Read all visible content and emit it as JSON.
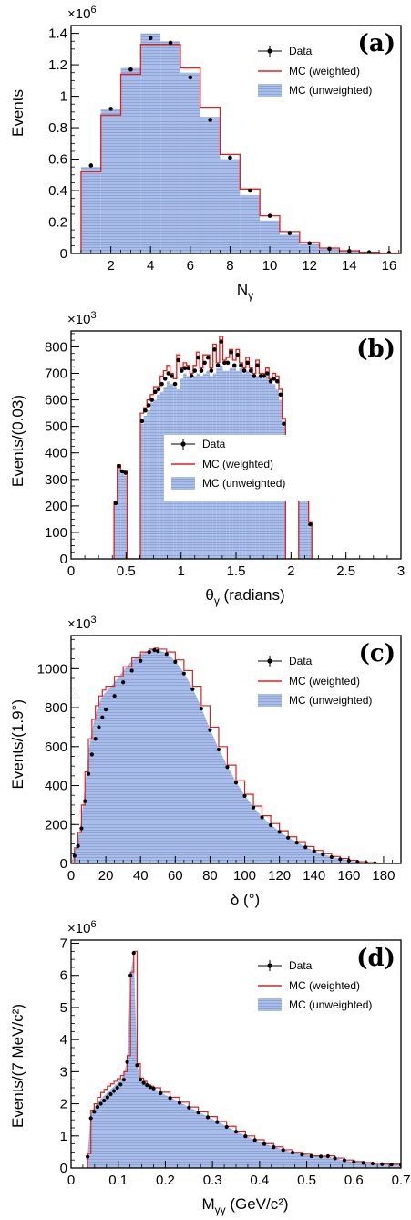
{
  "figure": {
    "fill_color": "#a9bde6",
    "hatch_color": "#7f99d6",
    "mc_line_color": "#e0201b",
    "data_color": "#000000"
  },
  "chart_data": [
    {
      "type": "bar",
      "panel_label": "(a)",
      "xlabel": "N",
      "xlabel_sub": "γ",
      "xlabel_rest": "",
      "ylabel": "Events",
      "multiplier": "×10",
      "multiplier_exp": "6",
      "xlim": [
        0,
        16.6
      ],
      "ylim": [
        0,
        1.45
      ],
      "xticks": [
        "2",
        "4",
        "6",
        "8",
        "10",
        "12",
        "14",
        "16"
      ],
      "xtick_values": [
        2,
        4,
        6,
        8,
        10,
        12,
        14,
        16
      ],
      "yticks": [
        "0",
        "0.2",
        "0.4",
        "0.6",
        "0.8",
        "1",
        "1.2",
        "1.4"
      ],
      "ytick_values": [
        0,
        0.2,
        0.4,
        0.6,
        0.8,
        1.0,
        1.2,
        1.4
      ],
      "legend": {
        "data": "Data",
        "weighted": "MC (weighted)",
        "unweighted": "MC (unweighted)"
      },
      "bin_edges": [
        0.5,
        1.5,
        2.5,
        3.5,
        4.5,
        5.5,
        6.5,
        7.5,
        8.5,
        9.5,
        10.5,
        11.5,
        12.5,
        13.5,
        14.5,
        15.5,
        16.5
      ],
      "series": [
        {
          "name": "MC (unweighted)",
          "values": [
            0.55,
            0.92,
            1.18,
            1.4,
            1.35,
            1.15,
            0.87,
            0.6,
            0.37,
            0.21,
            0.12,
            0.06,
            0.03,
            0.015,
            0.006,
            0.002
          ]
        },
        {
          "name": "MC (weighted)",
          "values": [
            0.52,
            0.88,
            1.14,
            1.33,
            1.33,
            1.18,
            0.93,
            0.63,
            0.41,
            0.24,
            0.14,
            0.07,
            0.035,
            0.017,
            0.008,
            0.003
          ]
        },
        {
          "name": "Data",
          "values": [
            0.56,
            0.92,
            1.17,
            1.37,
            1.34,
            1.12,
            0.85,
            0.61,
            0.4,
            0.24,
            0.13,
            0.065,
            0.03,
            0.015,
            0.007,
            0.003
          ]
        }
      ]
    },
    {
      "type": "bar",
      "panel_label": "(b)",
      "xlabel": "θ",
      "xlabel_sub": "γ",
      "xlabel_rest": " (radians)",
      "ylabel": "Events/(0.03)",
      "multiplier": "×10",
      "multiplier_exp": "3",
      "xlim": [
        0,
        3
      ],
      "ylim": [
        0,
        860
      ],
      "xticks": [
        "0",
        "0.5",
        "1",
        "1.5",
        "2",
        "2.5",
        "3"
      ],
      "xtick_values": [
        0,
        0.5,
        1,
        1.5,
        2,
        2.5,
        3
      ],
      "yticks": [
        "0",
        "100",
        "200",
        "300",
        "400",
        "500",
        "600",
        "700",
        "800"
      ],
      "ytick_values": [
        0,
        100,
        200,
        300,
        400,
        500,
        600,
        700,
        800
      ],
      "legend": {
        "data": "Data",
        "weighted": "MC (weighted)",
        "unweighted": "MC (unweighted)"
      },
      "bin_start": 0.39,
      "bin_width": 0.03,
      "series": [
        {
          "name": "MC (unweighted)",
          "values": [
            200,
            340,
            320,
            315,
            0,
            0,
            0,
            0,
            510,
            540,
            560,
            590,
            600,
            620,
            630,
            650,
            670,
            660,
            650,
            640,
            680,
            700,
            690,
            680,
            690,
            700,
            690,
            700,
            710,
            690,
            700,
            720,
            730,
            710,
            710,
            720,
            730,
            710,
            720,
            700,
            710,
            700,
            690,
            690,
            690,
            680,
            690,
            670,
            660,
            640,
            600,
            500,
            0,
            0,
            0,
            0,
            360,
            350,
            360,
            120
          ]
        },
        {
          "name": "MC (weighted)",
          "values": [
            215,
            355,
            335,
            330,
            0,
            0,
            0,
            0,
            550,
            570,
            600,
            620,
            650,
            650,
            690,
            710,
            730,
            700,
            680,
            770,
            720,
            740,
            730,
            700,
            730,
            780,
            720,
            770,
            770,
            720,
            810,
            740,
            840,
            750,
            760,
            790,
            750,
            790,
            740,
            720,
            760,
            720,
            700,
            750,
            700,
            700,
            720,
            680,
            700,
            690,
            640,
            530,
            0,
            0,
            0,
            0,
            400,
            375,
            395,
            140
          ]
        },
        {
          "name": "Data",
          "values": [
            210,
            350,
            330,
            325,
            0,
            0,
            0,
            0,
            520,
            560,
            580,
            600,
            630,
            640,
            660,
            680,
            700,
            690,
            660,
            750,
            710,
            720,
            720,
            690,
            710,
            760,
            710,
            740,
            760,
            710,
            790,
            730,
            820,
            740,
            740,
            780,
            730,
            770,
            730,
            710,
            740,
            710,
            690,
            730,
            690,
            690,
            700,
            670,
            680,
            670,
            620,
            510,
            0,
            0,
            0,
            0,
            385,
            360,
            380,
            130
          ]
        }
      ]
    },
    {
      "type": "line",
      "panel_label": "(c)",
      "xlabel": "δ",
      "xlabel_sub": "",
      "xlabel_rest": " (°)",
      "ylabel": "Events/(1.9°)",
      "multiplier": "×10",
      "multiplier_exp": "3",
      "xlim": [
        0,
        190
      ],
      "ylim": [
        0,
        1170
      ],
      "xticks": [
        "0",
        "20",
        "40",
        "60",
        "80",
        "100",
        "120",
        "140",
        "160",
        "180"
      ],
      "xtick_values": [
        0,
        20,
        40,
        60,
        80,
        100,
        120,
        140,
        160,
        180
      ],
      "yticks": [
        "0",
        "200",
        "400",
        "600",
        "800",
        "1000"
      ],
      "ytick_values": [
        0,
        200,
        400,
        600,
        800,
        1000
      ],
      "legend": {
        "data": "Data",
        "weighted": "MC (weighted)",
        "unweighted": "MC (unweighted)"
      },
      "x": [
        0,
        2,
        4,
        6,
        8,
        10,
        12,
        14,
        16,
        18,
        20,
        25,
        30,
        35,
        40,
        45,
        48,
        50,
        55,
        60,
        65,
        70,
        75,
        80,
        85,
        90,
        95,
        100,
        105,
        110,
        115,
        120,
        125,
        130,
        135,
        140,
        145,
        150,
        155,
        160,
        165,
        170,
        175,
        178
      ],
      "series": [
        {
          "name": "MC (unweighted)",
          "values": [
            0,
            60,
            120,
            230,
            400,
            570,
            680,
            760,
            820,
            860,
            880,
            930,
            990,
            1040,
            1075,
            1095,
            1100,
            1095,
            1080,
            1040,
            980,
            900,
            800,
            690,
            590,
            500,
            420,
            350,
            290,
            240,
            200,
            165,
            135,
            110,
            85,
            65,
            48,
            35,
            24,
            15,
            8,
            4,
            1,
            0
          ]
        },
        {
          "name": "MC (weighted)",
          "values": [
            0,
            80,
            160,
            300,
            470,
            640,
            740,
            810,
            860,
            890,
            910,
            960,
            1010,
            1055,
            1085,
            1100,
            1105,
            1100,
            1085,
            1045,
            990,
            910,
            810,
            700,
            600,
            505,
            425,
            355,
            295,
            245,
            205,
            168,
            137,
            112,
            87,
            67,
            50,
            36,
            25,
            16,
            9,
            4,
            1,
            0
          ]
        },
        {
          "name": "Data",
          "values": [
            0,
            40,
            90,
            180,
            320,
            460,
            560,
            640,
            700,
            750,
            790,
            860,
            930,
            990,
            1040,
            1085,
            1095,
            1090,
            1075,
            1035,
            975,
            895,
            795,
            685,
            585,
            495,
            415,
            347,
            287,
            237,
            197,
            162,
            132,
            107,
            83,
            63,
            46,
            33,
            22,
            14,
            7,
            3,
            1,
            0
          ]
        }
      ]
    },
    {
      "type": "line",
      "panel_label": "(d)",
      "xlabel": "M",
      "xlabel_sub": "γγ",
      "xlabel_rest": " (GeV/c²)",
      "ylabel": "Events/(7 MeV/c²)",
      "multiplier": "×10",
      "multiplier_exp": "6",
      "xlim": [
        0,
        0.7
      ],
      "ylim": [
        0,
        7.1
      ],
      "xticks": [
        "0",
        "0.1",
        "0.2",
        "0.3",
        "0.4",
        "0.5",
        "0.6",
        "0.7"
      ],
      "xtick_values": [
        0,
        0.1,
        0.2,
        0.3,
        0.4,
        0.5,
        0.6,
        0.7
      ],
      "yticks": [
        "0",
        "1",
        "2",
        "3",
        "4",
        "5",
        "6",
        "7"
      ],
      "ytick_values": [
        0,
        1,
        2,
        3,
        4,
        5,
        6,
        7
      ],
      "legend": {
        "data": "Data",
        "weighted": "MC (weighted)",
        "unweighted": "MC (unweighted)"
      },
      "x": [
        0.035,
        0.042,
        0.049,
        0.056,
        0.063,
        0.07,
        0.077,
        0.084,
        0.091,
        0.098,
        0.105,
        0.112,
        0.119,
        0.126,
        0.133,
        0.14,
        0.147,
        0.154,
        0.161,
        0.168,
        0.175,
        0.19,
        0.21,
        0.23,
        0.25,
        0.27,
        0.29,
        0.31,
        0.33,
        0.35,
        0.37,
        0.39,
        0.41,
        0.43,
        0.45,
        0.47,
        0.49,
        0.51,
        0.53,
        0.545,
        0.56,
        0.58,
        0.6,
        0.62,
        0.64,
        0.66,
        0.68,
        0.7
      ],
      "series": [
        {
          "name": "MC (unweighted)",
          "values": [
            0.4,
            1.7,
            1.9,
            2.05,
            2.15,
            2.25,
            2.35,
            2.45,
            2.55,
            2.65,
            2.75,
            2.9,
            3.4,
            6.0,
            6.7,
            3.2,
            2.8,
            2.7,
            2.6,
            2.55,
            2.5,
            2.35,
            2.2,
            2.05,
            1.9,
            1.75,
            1.6,
            1.45,
            1.3,
            1.15,
            1.0,
            0.88,
            0.76,
            0.66,
            0.57,
            0.49,
            0.43,
            0.38,
            0.36,
            0.37,
            0.3,
            0.24,
            0.2,
            0.17,
            0.15,
            0.13,
            0.12,
            0.11
          ]
        },
        {
          "name": "MC (weighted)",
          "values": [
            0.45,
            1.8,
            2.0,
            2.2,
            2.35,
            2.45,
            2.55,
            2.62,
            2.7,
            2.78,
            2.88,
            3.0,
            3.5,
            6.1,
            6.75,
            3.25,
            2.8,
            2.7,
            2.6,
            2.55,
            2.5,
            2.36,
            2.2,
            2.05,
            1.9,
            1.75,
            1.6,
            1.45,
            1.3,
            1.15,
            1.0,
            0.88,
            0.76,
            0.66,
            0.57,
            0.49,
            0.43,
            0.38,
            0.37,
            0.38,
            0.31,
            0.25,
            0.2,
            0.17,
            0.15,
            0.13,
            0.12,
            0.11
          ]
        },
        {
          "name": "Data",
          "values": [
            0.35,
            1.55,
            1.75,
            1.9,
            2.0,
            2.1,
            2.2,
            2.3,
            2.4,
            2.5,
            2.6,
            2.75,
            3.3,
            6.0,
            6.7,
            3.2,
            2.75,
            2.65,
            2.58,
            2.52,
            2.48,
            2.33,
            2.18,
            2.03,
            1.88,
            1.73,
            1.58,
            1.43,
            1.28,
            1.13,
            0.99,
            0.87,
            0.75,
            0.65,
            0.56,
            0.48,
            0.42,
            0.37,
            0.36,
            0.37,
            0.3,
            0.24,
            0.19,
            0.16,
            0.14,
            0.12,
            0.11,
            0.1
          ]
        }
      ]
    }
  ]
}
